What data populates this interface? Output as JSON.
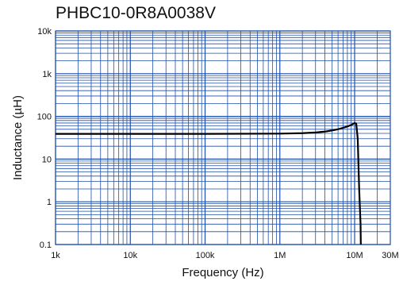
{
  "chart_data": {
    "type": "line",
    "title": "PHBC10-0R8A0038V",
    "xlabel": "Frequency (Hz)",
    "ylabel": "Inductance (µH)",
    "x_scale": "log",
    "y_scale": "log",
    "xlim": [
      1000,
      30000000
    ],
    "ylim": [
      0.1,
      10000
    ],
    "x_ticks": [
      {
        "value": 1000,
        "label": "1k"
      },
      {
        "value": 10000,
        "label": "10k"
      },
      {
        "value": 100000,
        "label": "100k"
      },
      {
        "value": 1000000,
        "label": "1M"
      },
      {
        "value": 10000000,
        "label": "10M"
      },
      {
        "value": 30000000,
        "label": "30M"
      }
    ],
    "y_ticks": [
      {
        "value": 10000,
        "label": "10k"
      },
      {
        "value": 1000,
        "label": "1k"
      },
      {
        "value": 100,
        "label": "100"
      },
      {
        "value": 10,
        "label": "10"
      },
      {
        "value": 1,
        "label": "1"
      },
      {
        "value": 0.1,
        "label": "0.1"
      }
    ],
    "grid": true,
    "grid_color": "#1f4fa8",
    "line_color": "#000000",
    "series": [
      {
        "x": [
          1000,
          10000,
          100000,
          1000000,
          2000000,
          3000000,
          4000000,
          5000000,
          6000000,
          7000000,
          8000000,
          9000000,
          10000000,
          10500000,
          11000000,
          11500000,
          12000000,
          12100000
        ],
        "y": [
          39,
          39,
          39,
          39.5,
          40.5,
          42,
          44,
          47,
          50,
          54,
          58,
          63,
          70,
          68,
          30,
          2,
          0.3,
          0.1
        ]
      }
    ]
  }
}
